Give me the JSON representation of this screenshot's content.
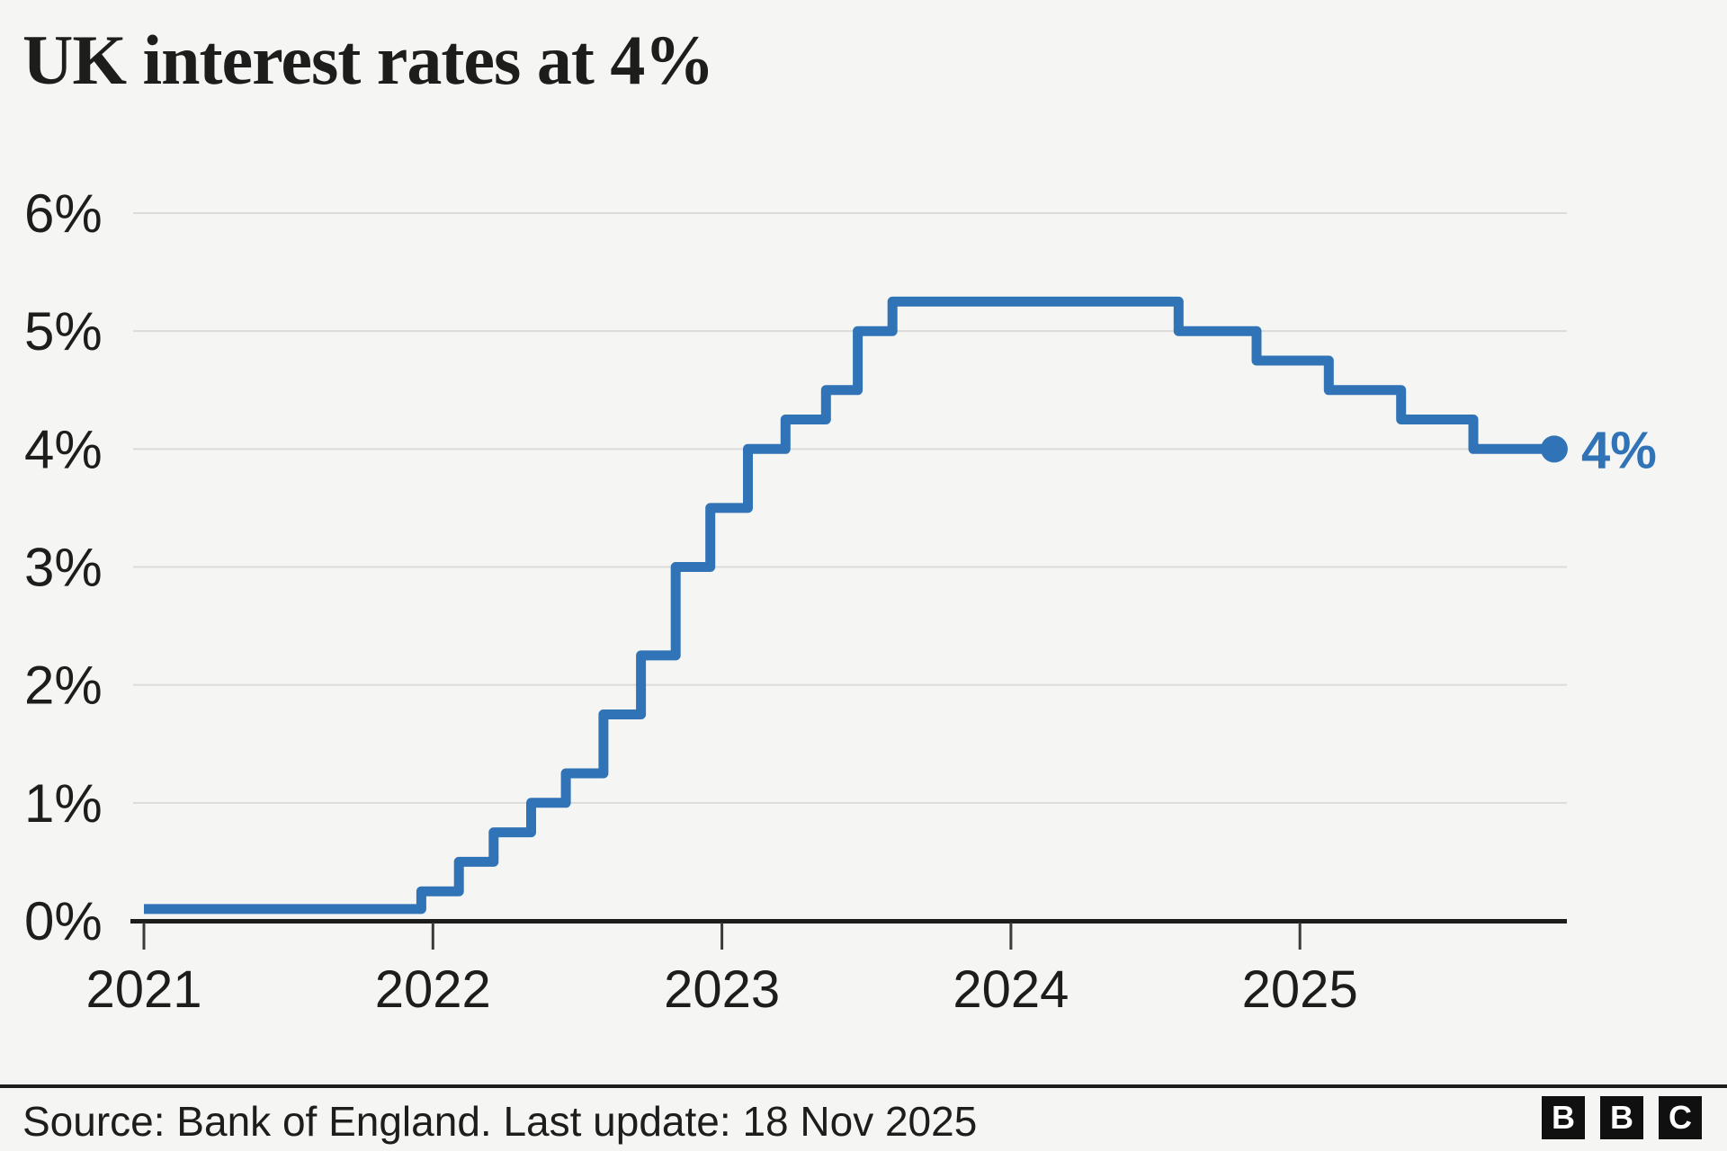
{
  "title": "UK interest rates at 4%",
  "footer": {
    "source": "Source: Bank of England. Last update: 18 Nov 2025"
  },
  "logo": {
    "letters": [
      "B",
      "B",
      "C"
    ]
  },
  "colors": {
    "background": "#f5f5f4",
    "line": "#3073b6",
    "grid": "#dbdbd9",
    "axis": "#1d1d1b",
    "tick": "#3a3a38",
    "text": "#1d1d1b"
  },
  "chart_data": {
    "type": "line",
    "step": true,
    "title": "UK interest rates at 4%",
    "xlabel": "",
    "ylabel": "",
    "x_unit": "decimal_year",
    "xlim": [
      2021,
      2025.88
    ],
    "ylim": [
      0,
      6
    ],
    "grid": "horizontal",
    "legend": "none",
    "x_ticks": [
      2021,
      2022,
      2023,
      2024,
      2025
    ],
    "y_ticks": [
      0,
      1,
      2,
      3,
      4,
      5,
      6
    ],
    "y_tick_suffix": "%",
    "points": [
      [
        2021.0,
        0.1
      ],
      [
        2021.96,
        0.25
      ],
      [
        2022.09,
        0.5
      ],
      [
        2022.21,
        0.75
      ],
      [
        2022.34,
        1.0
      ],
      [
        2022.46,
        1.25
      ],
      [
        2022.59,
        1.75
      ],
      [
        2022.72,
        2.25
      ],
      [
        2022.84,
        3.0
      ],
      [
        2022.96,
        3.5
      ],
      [
        2023.09,
        4.0
      ],
      [
        2023.22,
        4.25
      ],
      [
        2023.36,
        4.5
      ],
      [
        2023.47,
        5.0
      ],
      [
        2023.59,
        5.25
      ],
      [
        2024.58,
        5.0
      ],
      [
        2024.85,
        4.75
      ],
      [
        2025.1,
        4.5
      ],
      [
        2025.35,
        4.25
      ],
      [
        2025.6,
        4.0
      ]
    ],
    "end_marker": {
      "x": 2025.88,
      "y": 4,
      "label": "4%"
    }
  }
}
